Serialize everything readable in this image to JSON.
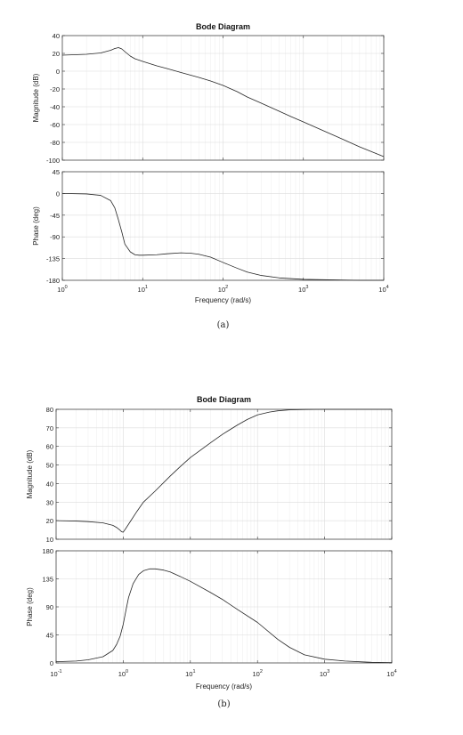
{
  "chart_data": [
    {
      "type": "line",
      "title": "Bode Diagram",
      "xlabel": "Frequency  (rad/s)",
      "xscale": "log",
      "xlim": [
        1,
        10000
      ],
      "x_ticks": [
        1,
        10,
        100,
        1000,
        10000
      ],
      "x_tick_labels": [
        [
          "10",
          "0"
        ],
        [
          "10",
          "1"
        ],
        [
          "10",
          "2"
        ],
        [
          "10",
          "3"
        ],
        [
          "10",
          "4"
        ]
      ],
      "grid": true,
      "caption": "(a)",
      "line_color": "#262626",
      "subplots": [
        {
          "ylabel": "Magnitude (dB)",
          "ylim": [
            -100,
            40
          ],
          "y_ticks": [
            40,
            20,
            0,
            -20,
            -40,
            -60,
            -80,
            -100
          ],
          "y_tick_labels": [
            "40",
            "20",
            "0",
            "-20",
            "-40",
            "-60",
            "-80",
            "-100"
          ],
          "series": [
            {
              "x": [
                1,
                2,
                3,
                4,
                4.5,
                5,
                5.5,
                6,
                7,
                8,
                10,
                15,
                20,
                30,
                50,
                70,
                100,
                150,
                200,
                300,
                500,
                700,
                1000,
                2000,
                3000,
                5000,
                10000
              ],
              "values": [
                18,
                19,
                20.5,
                23.5,
                25.5,
                26.5,
                25,
                22,
                17,
                14,
                11,
                6,
                3,
                -1.5,
                -7,
                -11,
                -16,
                -23,
                -29,
                -36,
                -45,
                -51,
                -57,
                -69,
                -76,
                -85,
                -96
              ]
            }
          ]
        },
        {
          "ylabel": "Phase (deg)",
          "ylim": [
            -180,
            45
          ],
          "y_ticks": [
            45,
            0,
            -45,
            -90,
            -135,
            -180
          ],
          "y_tick_labels": [
            "45",
            "0",
            "-45",
            "-90",
            "-135",
            "-180"
          ],
          "series": [
            {
              "x": [
                1,
                2,
                3,
                4,
                4.5,
                5,
                5.5,
                6,
                7,
                8,
                9,
                10,
                15,
                20,
                30,
                40,
                50,
                70,
                100,
                150,
                200,
                300,
                500,
                1000,
                2000,
                5000,
                10000
              ],
              "values": [
                0,
                -1,
                -4,
                -15,
                -30,
                -55,
                -80,
                -105,
                -121,
                -127,
                -128,
                -128,
                -127,
                -125,
                -123,
                -124,
                -126,
                -132,
                -143,
                -155,
                -163,
                -170,
                -175,
                -178,
                -179,
                -180,
                -180
              ]
            }
          ]
        }
      ]
    },
    {
      "type": "line",
      "title": "Bode Diagram",
      "xlabel": "Frequency  (rad/s)",
      "xscale": "log",
      "xlim": [
        0.1,
        10000
      ],
      "x_ticks": [
        0.1,
        1,
        10,
        100,
        1000,
        10000
      ],
      "x_tick_labels": [
        [
          "10",
          "-1"
        ],
        [
          "10",
          "0"
        ],
        [
          "10",
          "1"
        ],
        [
          "10",
          "2"
        ],
        [
          "10",
          "3"
        ],
        [
          "10",
          "4"
        ]
      ],
      "grid": true,
      "caption": "(b)",
      "line_color": "#262626",
      "subplots": [
        {
          "ylabel": "Magnitude (dB)",
          "ylim": [
            10,
            80
          ],
          "y_ticks": [
            80,
            70,
            60,
            50,
            40,
            30,
            20,
            10
          ],
          "y_tick_labels": [
            "80",
            "70",
            "60",
            "50",
            "40",
            "30",
            "20",
            "10"
          ],
          "series": [
            {
              "x": [
                0.1,
                0.2,
                0.3,
                0.5,
                0.7,
                0.8,
                0.9,
                0.95,
                1,
                1.1,
                1.3,
                1.6,
                2,
                3,
                5,
                7,
                10,
                20,
                30,
                50,
                70,
                100,
                150,
                200,
                300,
                500,
                1000,
                2000,
                5000,
                10000
              ],
              "values": [
                20,
                19.8,
                19.5,
                18.8,
                17.5,
                16.3,
                14.8,
                14,
                13.8,
                16,
                20,
                25,
                30,
                36,
                44,
                49,
                54,
                62,
                66.5,
                71.5,
                74.5,
                77,
                78.5,
                79.2,
                79.7,
                79.9,
                80,
                80,
                80,
                80
              ]
            }
          ]
        },
        {
          "ylabel": "Phase (deg)",
          "ylim": [
            0,
            180
          ],
          "y_ticks": [
            180,
            135,
            90,
            45,
            0
          ],
          "y_tick_labels": [
            "180",
            "135",
            "90",
            "45",
            "0"
          ],
          "series": [
            {
              "x": [
                0.1,
                0.2,
                0.3,
                0.5,
                0.7,
                0.8,
                0.9,
                1,
                1.1,
                1.2,
                1.4,
                1.7,
                2,
                2.5,
                3,
                4,
                5,
                7,
                10,
                20,
                30,
                50,
                100,
                200,
                300,
                500,
                1000,
                2000,
                5000,
                10000
              ],
              "values": [
                2,
                3,
                5,
                10,
                20,
                30,
                43,
                62,
                85,
                105,
                127,
                142,
                148,
                151,
                151,
                149,
                146,
                139,
                131,
                113,
                102,
                86,
                65,
                38,
                25,
                13,
                6,
                3,
                1,
                0.5
              ]
            }
          ]
        }
      ]
    }
  ]
}
